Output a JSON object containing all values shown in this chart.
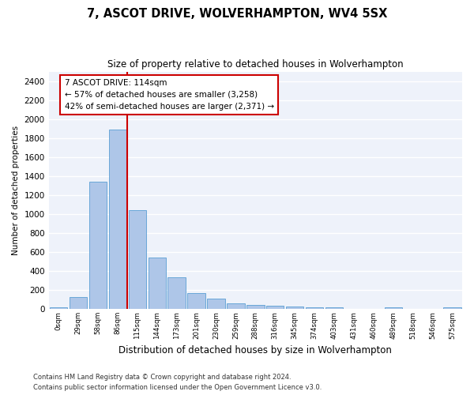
{
  "title": "7, ASCOT DRIVE, WOLVERHAMPTON, WV4 5SX",
  "subtitle": "Size of property relative to detached houses in Wolverhampton",
  "xlabel": "Distribution of detached houses by size in Wolverhampton",
  "ylabel": "Number of detached properties",
  "bar_color": "#aec6e8",
  "bar_edge_color": "#5a9fd4",
  "background_color": "#eef2fa",
  "grid_color": "#ffffff",
  "annotation_line_color": "#cc0000",
  "annotation_box_color": "#cc0000",
  "annotation_text_line1": "7 ASCOT DRIVE: 114sqm",
  "annotation_text_line2": "← 57% of detached houses are smaller (3,258)",
  "annotation_text_line3": "42% of semi-detached houses are larger (2,371) →",
  "categories": [
    "0sqm",
    "29sqm",
    "58sqm",
    "86sqm",
    "115sqm",
    "144sqm",
    "173sqm",
    "201sqm",
    "230sqm",
    "259sqm",
    "288sqm",
    "316sqm",
    "345sqm",
    "374sqm",
    "403sqm",
    "431sqm",
    "460sqm",
    "489sqm",
    "518sqm",
    "546sqm",
    "575sqm"
  ],
  "values": [
    15,
    125,
    1340,
    1890,
    1040,
    540,
    335,
    170,
    110,
    60,
    40,
    30,
    25,
    20,
    15,
    0,
    0,
    20,
    0,
    0,
    15
  ],
  "ylim": [
    0,
    2500
  ],
  "yticks": [
    0,
    200,
    400,
    600,
    800,
    1000,
    1200,
    1400,
    1600,
    1800,
    2000,
    2200,
    2400
  ],
  "footer_line1": "Contains HM Land Registry data © Crown copyright and database right 2024.",
  "footer_line2": "Contains public sector information licensed under the Open Government Licence v3.0."
}
